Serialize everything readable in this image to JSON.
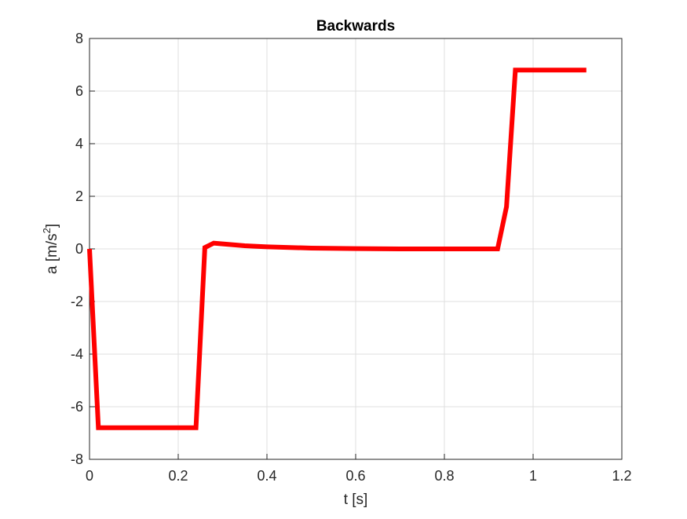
{
  "chart_data": {
    "type": "line",
    "title": "Backwards",
    "xlabel": "t [s]",
    "ylabel_base": "a [m/s",
    "ylabel_sup": "2",
    "ylabel_close": "]",
    "xlim": [
      0,
      1.2
    ],
    "ylim": [
      -8,
      8
    ],
    "x_ticks": [
      0,
      0.2,
      0.4,
      0.6,
      0.8,
      1,
      1.2
    ],
    "y_ticks": [
      -8,
      -6,
      -4,
      -2,
      0,
      2,
      4,
      6,
      8
    ],
    "x_tick_labels": [
      "0",
      "0.2",
      "0.4",
      "0.6",
      "0.8",
      "1",
      "1.2"
    ],
    "y_tick_labels": [
      "-8",
      "-6",
      "-4",
      "-2",
      "0",
      "2",
      "4",
      "6",
      "8"
    ],
    "grid": true,
    "series": [
      {
        "color": "#ff0000",
        "x": [
          0,
          0.02,
          0.04,
          0.1,
          0.2,
          0.24,
          0.26,
          0.28,
          0.3,
          0.35,
          0.4,
          0.5,
          0.6,
          0.7,
          0.8,
          0.9,
          0.92,
          0.94,
          0.96,
          1.0,
          1.05,
          1.1,
          1.12
        ],
        "y": [
          0,
          -6.8,
          -6.8,
          -6.8,
          -6.8,
          -6.8,
          0.05,
          0.22,
          0.19,
          0.12,
          0.08,
          0.03,
          0.01,
          0.0,
          0.0,
          0.0,
          0.0,
          1.6,
          6.8,
          6.8,
          6.8,
          6.8,
          6.8
        ]
      }
    ]
  }
}
